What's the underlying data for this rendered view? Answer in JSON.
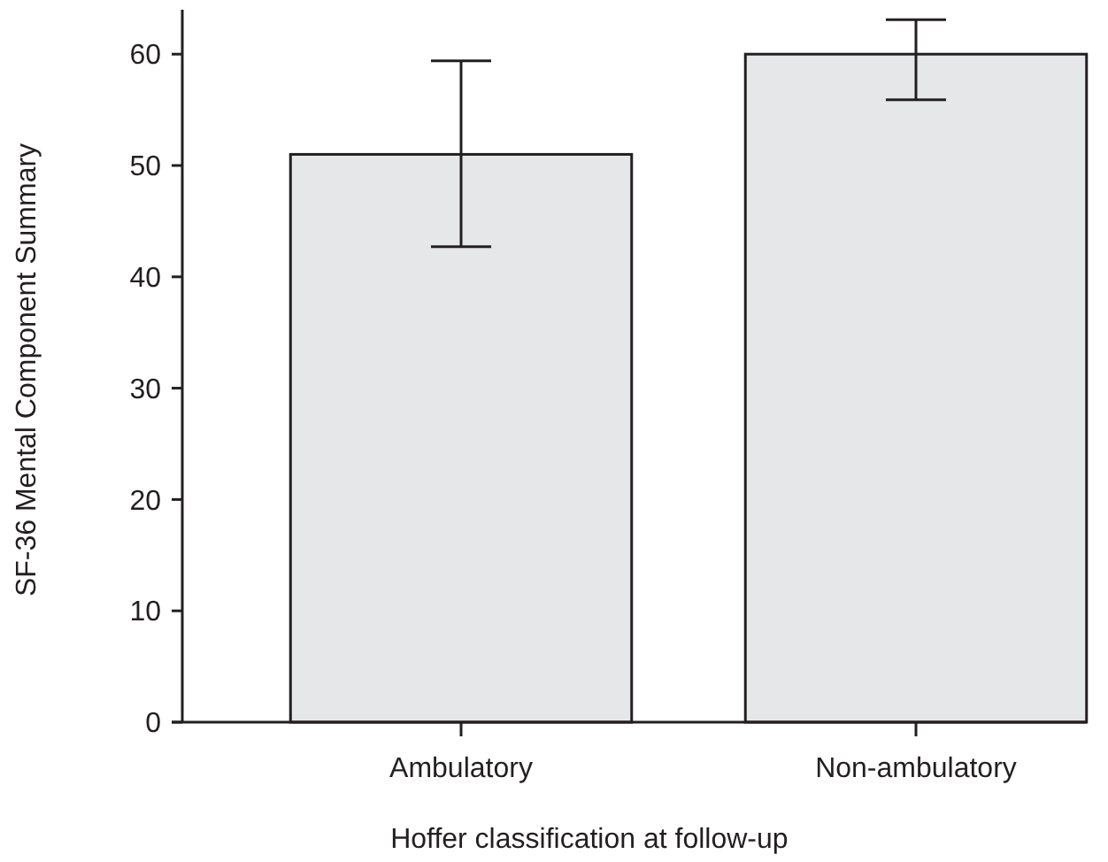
{
  "chart_data": {
    "type": "bar",
    "xlabel": "Hoffer classification at follow-up",
    "ylabel": "SF-36 Mental Component Summary",
    "categories": [
      "Ambulatory",
      "Non-ambulatory"
    ],
    "values": [
      51,
      60
    ],
    "errors": [
      [
        42.7,
        59.4
      ],
      [
        55.9,
        63.1
      ]
    ],
    "color": "#e6e7e8",
    "ylim": [
      0,
      64
    ],
    "yticks": [
      0,
      10,
      20,
      30,
      40,
      50,
      60
    ]
  }
}
